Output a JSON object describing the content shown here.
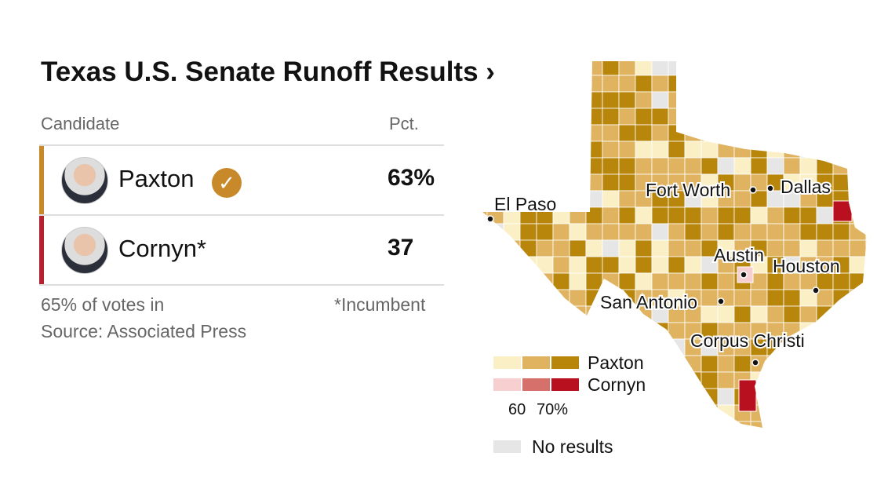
{
  "header": {
    "title": "Texas U.S. Senate Runoff Results ›"
  },
  "table": {
    "columns": [
      "Candidate",
      "Pct."
    ],
    "rows": [
      {
        "name": "Paxton",
        "pct": "63%",
        "color": "#c8892a",
        "winner": true
      },
      {
        "name": "Cornyn*",
        "pct": "37",
        "color": "#b6212f",
        "winner": false
      }
    ]
  },
  "footer": {
    "reporting": "65% of votes in",
    "source": "Source: Associated Press",
    "note": "*Incumbent"
  },
  "map": {
    "cities": [
      "El Paso",
      "Fort Worth",
      "Dallas",
      "Austin",
      "Houston",
      "San Antonio",
      "Corpus Christi"
    ],
    "legend": {
      "series": [
        {
          "name": "Paxton",
          "colors": [
            "#fbefc6",
            "#dfb35f",
            "#b8860b"
          ]
        },
        {
          "name": "Cornyn",
          "colors": [
            "#f7cfd1",
            "#d6706a",
            "#b8101e"
          ]
        }
      ],
      "scale": [
        "60",
        "70%"
      ],
      "none": "No results",
      "none_color": "#e6e6e6"
    }
  }
}
